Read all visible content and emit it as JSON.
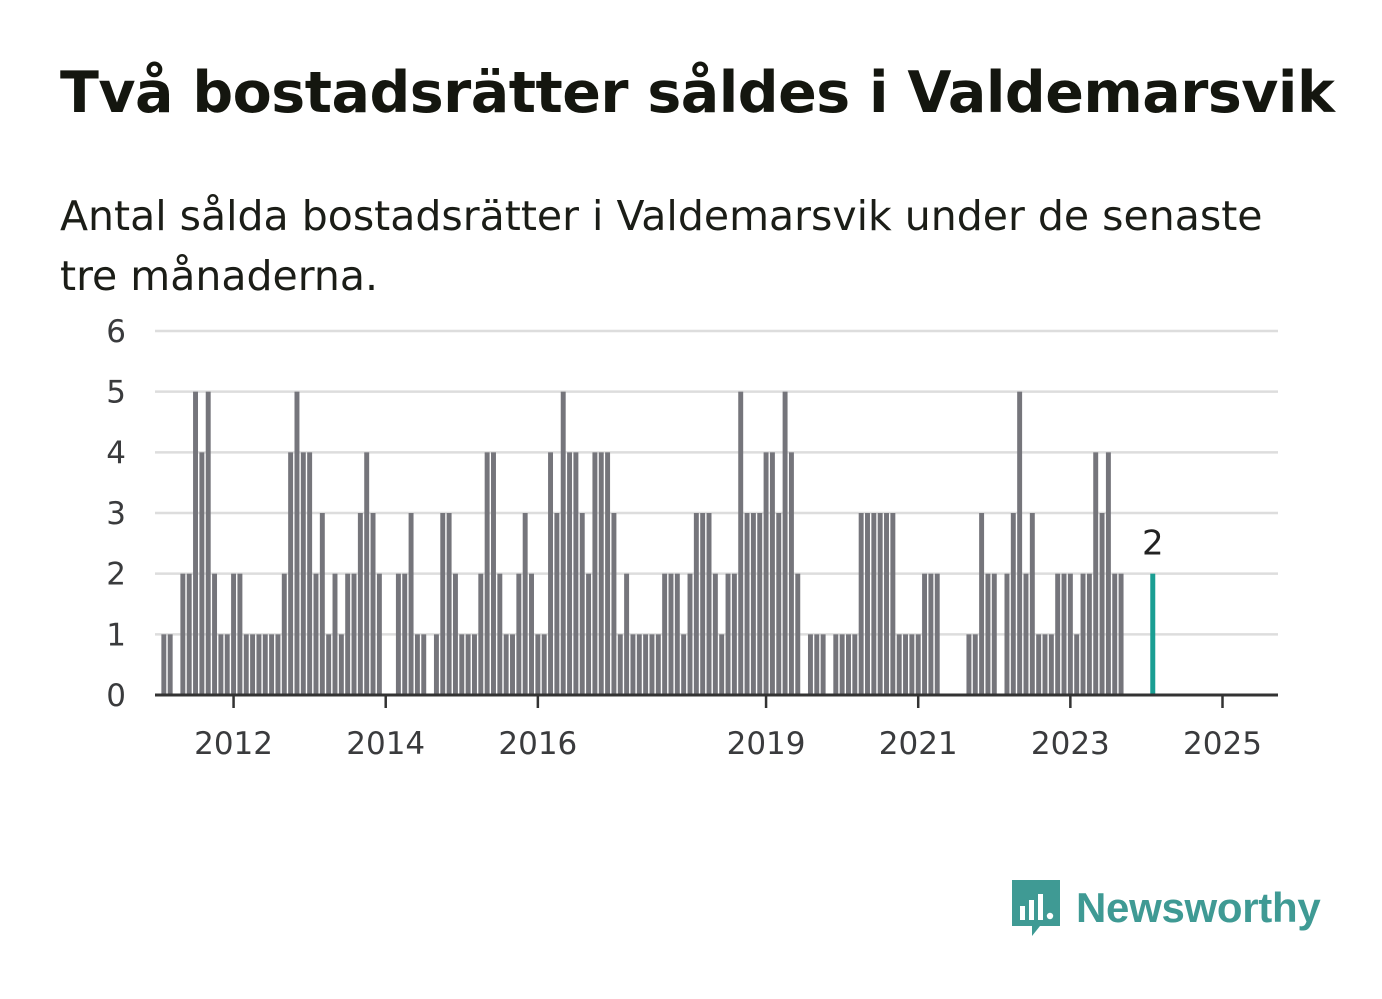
{
  "title": "Två bostadsrätter såldes i Valdemarsvik",
  "subtitle": "Antal sålda bostadsrätter i Valdemarsvik under de senaste tre månaderna.",
  "brand": {
    "name": "Newsworthy",
    "color": "#3f9a94",
    "icon": "newsworthy-logo-icon"
  },
  "colors": {
    "bar": "#75757b",
    "highlight": "#1a9e93",
    "grid": "#dddddd",
    "axis": "#333333"
  },
  "chart_data": {
    "type": "bar",
    "x_start": "2011-01",
    "x_end": "2025-01",
    "ylim": [
      0,
      6
    ],
    "y_ticks": [
      0,
      1,
      2,
      3,
      4,
      5,
      6
    ],
    "x_ticks": [
      "2012",
      "2014",
      "2016",
      "2019",
      "2021",
      "2023",
      "2025"
    ],
    "series": [
      {
        "values": [
          0,
          1,
          1,
          0,
          2,
          2,
          5,
          4,
          5,
          2,
          1,
          1,
          2,
          2,
          1,
          1,
          1,
          1,
          1,
          1,
          2,
          4,
          5,
          4,
          4,
          2,
          3,
          1,
          2,
          1,
          2,
          2,
          3,
          4,
          3,
          2,
          0,
          0,
          2,
          2,
          3,
          1,
          1,
          0,
          1,
          3,
          3,
          2,
          1,
          1,
          1,
          2,
          4,
          4,
          2,
          1,
          1,
          2,
          3,
          2,
          1,
          1,
          4,
          3,
          5,
          4,
          4,
          3,
          2,
          4,
          4,
          4,
          3,
          1,
          2,
          1,
          1,
          1,
          1,
          1,
          2,
          2,
          2,
          1,
          2,
          3,
          3,
          3,
          2,
          1,
          2,
          2,
          5,
          3,
          3,
          3,
          4,
          4,
          3,
          5,
          4,
          2,
          0,
          1,
          1,
          1,
          0,
          1,
          1,
          1,
          1,
          3,
          3,
          3,
          3,
          3,
          3,
          1,
          1,
          1,
          1,
          2,
          2,
          2,
          0,
          0,
          0,
          0,
          1,
          1,
          3,
          2,
          2,
          0,
          2,
          3,
          5,
          2,
          3,
          1,
          1,
          1,
          2,
          2,
          2,
          1,
          2,
          2,
          4,
          3,
          4,
          2,
          2,
          0,
          0,
          0,
          0,
          2
        ]
      }
    ],
    "highlight_index": 157,
    "highlight_label": "2"
  }
}
